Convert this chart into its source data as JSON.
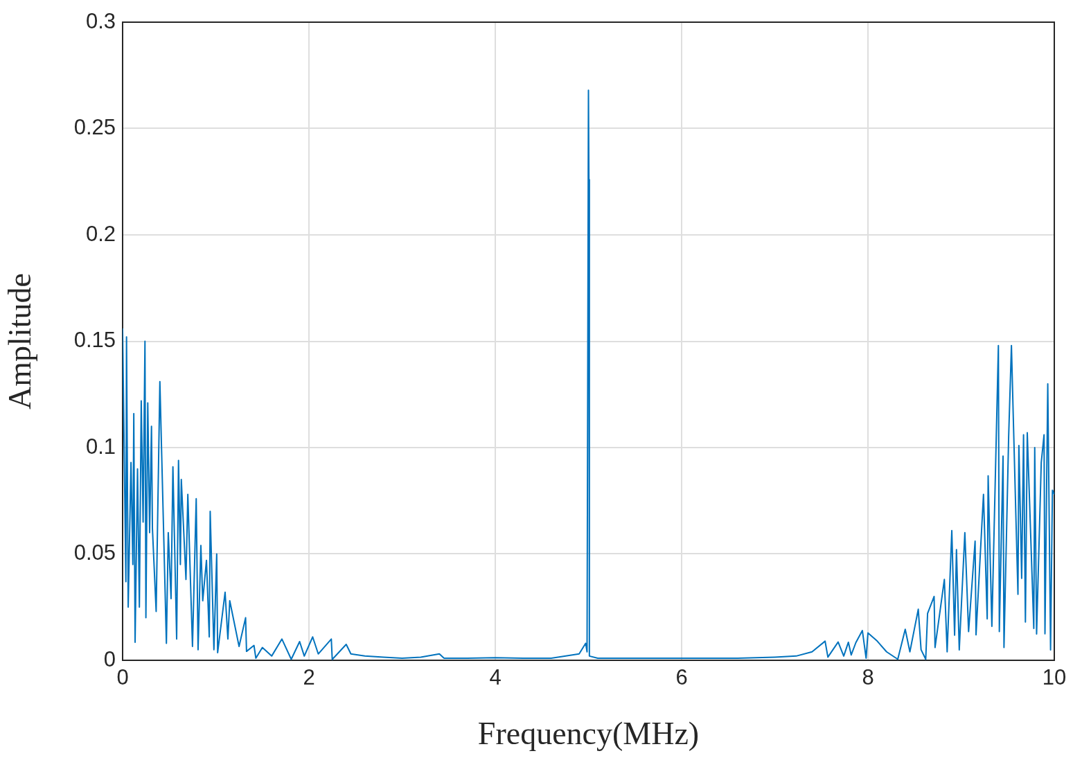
{
  "chart_data": {
    "type": "line",
    "xlabel": "Frequency(MHz)",
    "ylabel": "Amplitude",
    "xlim": [
      0,
      10
    ],
    "ylim": [
      0,
      0.3
    ],
    "xticks": [
      0,
      2,
      4,
      6,
      8,
      10
    ],
    "yticks": [
      0,
      0.05,
      0.1,
      0.15,
      0.2,
      0.25,
      0.3
    ],
    "grid": true,
    "legend": false,
    "marker": "none",
    "line_style": "solid",
    "series": [
      {
        "color": "#0072bd",
        "x": [
          0,
          0.035,
          0.042,
          0.06,
          0.09,
          0.11,
          0.12,
          0.134,
          0.16,
          0.18,
          0.2,
          0.22,
          0.24,
          0.25,
          0.27,
          0.29,
          0.31,
          0.32,
          0.36,
          0.4,
          0.47,
          0.49,
          0.52,
          0.54,
          0.58,
          0.6,
          0.62,
          0.63,
          0.68,
          0.7,
          0.75,
          0.79,
          0.81,
          0.84,
          0.86,
          0.9,
          0.93,
          0.94,
          0.98,
          1.01,
          1.02,
          1.1,
          1.13,
          1.15,
          1.25,
          1.32,
          1.33,
          1.41,
          1.43,
          1.5,
          1.6,
          1.71,
          1.81,
          1.9,
          1.95,
          2.04,
          2.1,
          2.24,
          2.25,
          2.4,
          2.45,
          2.6,
          2.8,
          3.0,
          3.2,
          3.4,
          3.45,
          3.7,
          4.0,
          4.3,
          4.6,
          4.9,
          4.97,
          4.985,
          5.0,
          5.005,
          5.01,
          5.1,
          5.4,
          5.8,
          6.2,
          6.6,
          7.0,
          7.23,
          7.4,
          7.54,
          7.57,
          7.68,
          7.74,
          7.79,
          7.82,
          7.87,
          7.94,
          7.98,
          8.0,
          8.1,
          8.2,
          8.32,
          8.4,
          8.45,
          8.54,
          8.57,
          8.62,
          8.64,
          8.71,
          8.72,
          8.82,
          8.85,
          8.9,
          8.93,
          8.95,
          8.98,
          9.04,
          9.08,
          9.15,
          9.16,
          9.24,
          9.28,
          9.29,
          9.33,
          9.4,
          9.41,
          9.45,
          9.46,
          9.51,
          9.54,
          9.56,
          9.61,
          9.62,
          9.65,
          9.67,
          9.69,
          9.71,
          9.78,
          9.79,
          9.81,
          9.86,
          9.89,
          9.9,
          9.93,
          9.96,
          9.98,
          10
        ],
        "values": [
          0.156,
          0.037,
          0.152,
          0.025,
          0.093,
          0.045,
          0.116,
          0.0085,
          0.09,
          0.025,
          0.122,
          0.065,
          0.15,
          0.02,
          0.121,
          0.06,
          0.11,
          0.062,
          0.023,
          0.131,
          0.008,
          0.06,
          0.029,
          0.091,
          0.01,
          0.094,
          0.045,
          0.085,
          0.038,
          0.078,
          0.0065,
          0.076,
          0.005,
          0.054,
          0.028,
          0.047,
          0.011,
          0.07,
          0.005,
          0.05,
          0.0036,
          0.032,
          0.01,
          0.028,
          0.0065,
          0.02,
          0.0042,
          0.007,
          0.001,
          0.006,
          0.002,
          0.01,
          0.0005,
          0.0088,
          0.002,
          0.011,
          0.003,
          0.01,
          0.0004,
          0.0075,
          0.003,
          0.002,
          0.0015,
          0.001,
          0.0015,
          0.003,
          0.001,
          0.001,
          0.0012,
          0.001,
          0.001,
          0.003,
          0.008,
          0.004,
          0.268,
          0.226,
          0.002,
          0.001,
          0.001,
          0.001,
          0.001,
          0.001,
          0.0015,
          0.002,
          0.004,
          0.009,
          0.0015,
          0.0086,
          0.002,
          0.0085,
          0.0025,
          0.0083,
          0.014,
          0.001,
          0.0129,
          0.009,
          0.004,
          0.0005,
          0.0146,
          0.004,
          0.024,
          0.005,
          0.0005,
          0.022,
          0.03,
          0.006,
          0.038,
          0.004,
          0.061,
          0.0118,
          0.052,
          0.0049,
          0.06,
          0.0135,
          0.056,
          0.012,
          0.078,
          0.0195,
          0.0867,
          0.016,
          0.148,
          0.0135,
          0.096,
          0.006,
          0.105,
          0.148,
          0.114,
          0.031,
          0.101,
          0.0385,
          0.106,
          0.018,
          0.107,
          0.015,
          0.1,
          0.0124,
          0.093,
          0.106,
          0.0125,
          0.13,
          0.0049,
          0.08,
          0.078
        ]
      }
    ]
  }
}
